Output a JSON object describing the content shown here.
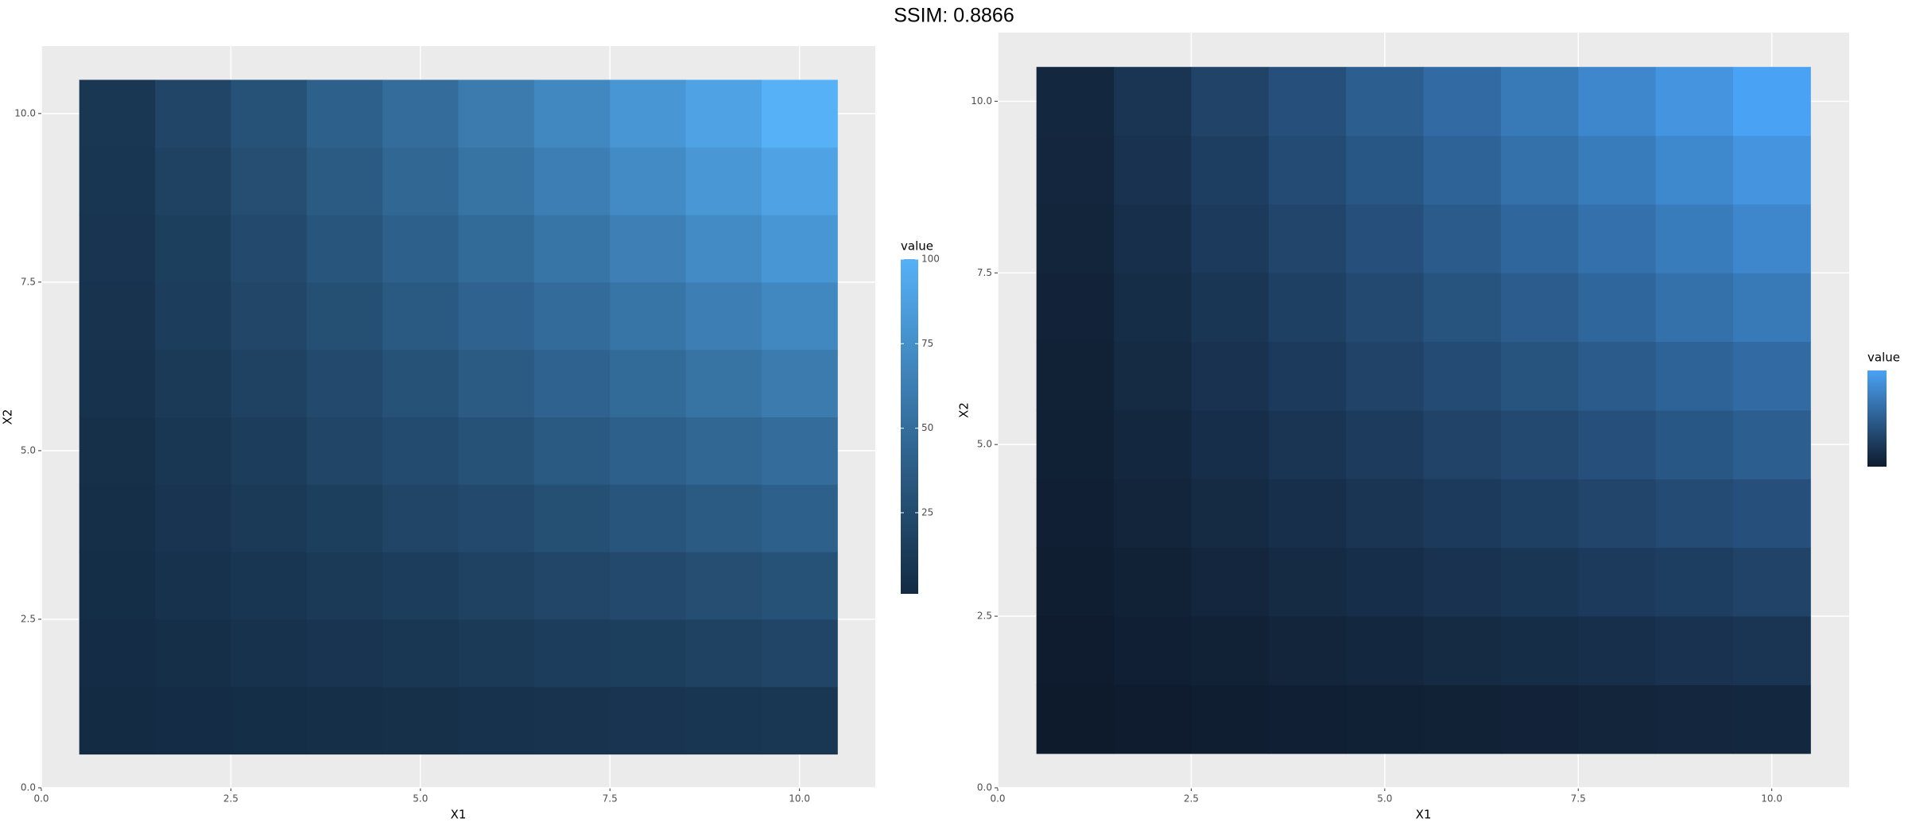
{
  "title": "SSIM: 0.8866",
  "chart_data": [
    {
      "type": "heatmap",
      "xlabel": "X1",
      "ylabel": "X2",
      "legend_title": "value",
      "x": [
        1,
        2,
        3,
        4,
        5,
        6,
        7,
        8,
        9,
        10
      ],
      "y": [
        1,
        2,
        3,
        4,
        5,
        6,
        7,
        8,
        9,
        10
      ],
      "values": [
        [
          1,
          2,
          3,
          4,
          5,
          6,
          7,
          8,
          9,
          10
        ],
        [
          2,
          4,
          6,
          8,
          10,
          12,
          14,
          16,
          18,
          20
        ],
        [
          3,
          6,
          9,
          12,
          15,
          18,
          21,
          24,
          27,
          30
        ],
        [
          4,
          8,
          12,
          16,
          20,
          24,
          28,
          32,
          36,
          40
        ],
        [
          5,
          10,
          15,
          20,
          25,
          30,
          35,
          40,
          45,
          50
        ],
        [
          6,
          12,
          18,
          24,
          30,
          36,
          42,
          48,
          54,
          60
        ],
        [
          7,
          14,
          21,
          28,
          35,
          42,
          49,
          56,
          63,
          70
        ],
        [
          8,
          16,
          24,
          32,
          40,
          48,
          56,
          64,
          72,
          80
        ],
        [
          9,
          18,
          27,
          36,
          45,
          54,
          63,
          72,
          81,
          90
        ],
        [
          10,
          20,
          30,
          40,
          50,
          60,
          70,
          80,
          90,
          100
        ]
      ],
      "color_low": "#132B43",
      "color_high": "#56B1F7",
      "xlim": [
        0,
        11
      ],
      "ylim": [
        0,
        11
      ],
      "xticks": [
        {
          "value": 0,
          "label": "0.0"
        },
        {
          "value": 2.5,
          "label": "2.5"
        },
        {
          "value": 5,
          "label": "5.0"
        },
        {
          "value": 7.5,
          "label": "7.5"
        },
        {
          "value": 10,
          "label": "10.0"
        }
      ],
      "yticks": [
        {
          "value": 0,
          "label": "0.0"
        },
        {
          "value": 2.5,
          "label": "2.5"
        },
        {
          "value": 5,
          "label": "5.0"
        },
        {
          "value": 7.5,
          "label": "7.5"
        },
        {
          "value": 10,
          "label": "10.0"
        }
      ],
      "legend_ticks": [
        25,
        50,
        75,
        100
      ],
      "grid": true
    },
    {
      "type": "heatmap",
      "xlabel": "X1",
      "ylabel": "X2",
      "legend_title": "value",
      "x": [
        1,
        2,
        3,
        4,
        5,
        6,
        7,
        8,
        9,
        10
      ],
      "y": [
        1,
        2,
        3,
        4,
        5,
        6,
        7,
        8,
        9,
        10
      ],
      "values": [
        [
          1,
          2,
          3,
          4,
          5,
          6,
          7,
          8,
          9,
          10
        ],
        [
          2,
          4,
          6,
          8,
          10,
          12,
          14,
          16,
          18,
          20
        ],
        [
          3,
          6,
          9,
          12,
          15,
          18,
          21,
          24,
          27,
          30
        ],
        [
          4,
          8,
          12,
          16,
          20,
          24,
          28,
          32,
          36,
          40
        ],
        [
          5,
          10,
          15,
          20,
          25,
          30,
          35,
          40,
          45,
          50
        ],
        [
          6,
          12,
          18,
          24,
          30,
          36,
          42,
          48,
          54,
          60
        ],
        [
          7,
          14,
          21,
          28,
          35,
          42,
          49,
          56,
          63,
          70
        ],
        [
          8,
          16,
          24,
          32,
          40,
          48,
          56,
          64,
          72,
          80
        ],
        [
          9,
          18,
          27,
          36,
          45,
          54,
          63,
          72,
          81,
          90
        ],
        [
          10,
          20,
          30,
          40,
          50,
          60,
          70,
          80,
          90,
          100
        ]
      ],
      "color_low": "#0E1B2D",
      "color_high": "#4AA2F4",
      "xlim": [
        0,
        11
      ],
      "ylim": [
        0,
        11
      ],
      "xticks": [
        {
          "value": 0,
          "label": "0.0"
        },
        {
          "value": 2.5,
          "label": "2.5"
        },
        {
          "value": 5,
          "label": "5.0"
        },
        {
          "value": 7.5,
          "label": "7.5"
        },
        {
          "value": 10,
          "label": "10.0"
        }
      ],
      "yticks": [
        {
          "value": 0,
          "label": "0.0"
        },
        {
          "value": 2.5,
          "label": "2.5"
        },
        {
          "value": 5,
          "label": "5.0"
        },
        {
          "value": 7.5,
          "label": "7.5"
        },
        {
          "value": 10,
          "label": "10.0"
        }
      ],
      "grid": true
    }
  ]
}
